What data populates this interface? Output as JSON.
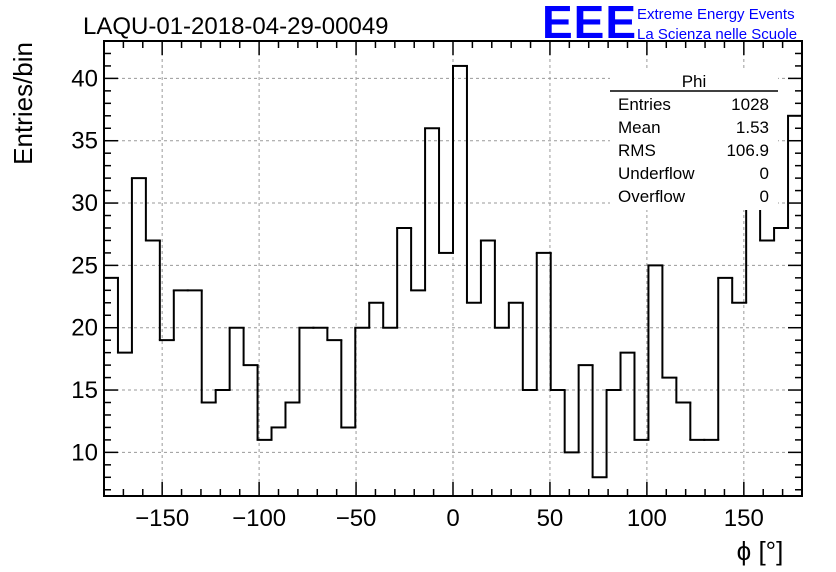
{
  "colors": {
    "axis": "#000000",
    "grid": "#9a9a9a",
    "histogram": "#000000",
    "logo": "#0000ff",
    "background": "#ffffff"
  },
  "logo": {
    "mark": "EEE",
    "line1": "Extreme Energy Events",
    "line2": "La Scienza nelle Scuole"
  },
  "stats": {
    "name": "Phi",
    "rows": [
      {
        "label": "Entries",
        "value": "1028"
      },
      {
        "label": "Mean",
        "value": "1.53"
      },
      {
        "label": "RMS",
        "value": "106.9"
      },
      {
        "label": "Underflow",
        "value": "0"
      },
      {
        "label": "Overflow",
        "value": "0"
      }
    ]
  },
  "chart_data": {
    "type": "bar",
    "style": "step-histogram",
    "title": "LAQU-01-2018-04-29-00049",
    "xlabel": "ϕ [°]",
    "ylabel": "Entries/bin",
    "xlim": [
      -180,
      180
    ],
    "ylim": [
      6.5,
      43
    ],
    "bin_width": 7.2,
    "xticks": [
      -150,
      -100,
      -50,
      0,
      50,
      100,
      150
    ],
    "xtick_labels": [
      "−150",
      "−100",
      "−50",
      "0",
      "50",
      "100",
      "150"
    ],
    "yticks": [
      10,
      15,
      20,
      25,
      30,
      35,
      40
    ],
    "ytick_labels": [
      "10",
      "15",
      "20",
      "25",
      "30",
      "35",
      "40"
    ],
    "grid": true,
    "values": [
      24,
      18,
      32,
      27,
      19,
      23,
      23,
      14,
      15,
      20,
      17,
      11,
      12,
      14,
      20,
      20,
      19,
      12,
      20,
      22,
      20,
      28,
      23,
      36,
      26,
      41,
      22,
      27,
      20,
      22,
      15,
      26,
      15,
      10,
      17,
      8,
      15,
      18,
      11,
      25,
      16,
      14,
      11,
      11,
      24,
      22,
      31,
      27,
      28,
      37
    ]
  }
}
